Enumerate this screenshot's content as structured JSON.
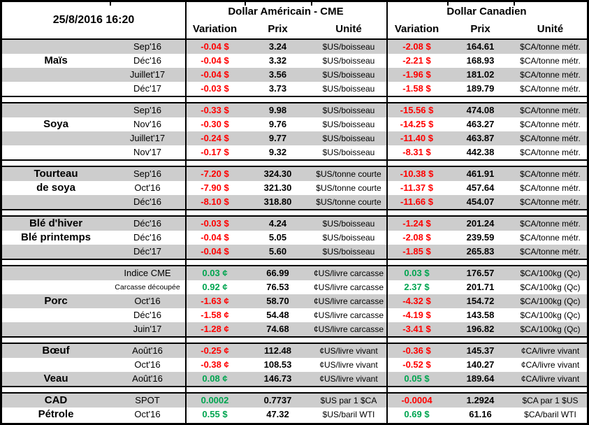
{
  "header": {
    "datetime": "25/8/2016 16:20",
    "us_title": "Dollar Américain - CME",
    "ca_title": "Dollar Canadien",
    "col_variation": "Variation",
    "col_prix": "Prix",
    "col_unite": "Unité"
  },
  "colors": {
    "negative": "#FF0000",
    "positive": "#00A550",
    "stripe": "#CDCDCD"
  },
  "chart_data": {
    "type": "table",
    "title": "25/8/2016 16:20",
    "column_groups": [
      "Dollar Américain - CME",
      "Dollar Canadien"
    ],
    "columns": [
      "Variation",
      "Prix",
      "Unité",
      "Variation",
      "Prix",
      "Unité"
    ],
    "groups": [
      {
        "commodity": "Maïs",
        "rows": [
          {
            "month": "Sep'16",
            "us_var": "-0.04 $",
            "us_prix": "3.24",
            "us_unit": "$US/boisseau",
            "ca_var": "-2.08 $",
            "ca_prix": "164.61",
            "ca_unit": "$CA/tonne métr."
          },
          {
            "name": "Maïs",
            "month": "Déc'16",
            "us_var": "-0.04 $",
            "us_prix": "3.32",
            "us_unit": "$US/boisseau",
            "ca_var": "-2.21 $",
            "ca_prix": "168.93",
            "ca_unit": "$CA/tonne métr."
          },
          {
            "month": "Juillet'17",
            "us_var": "-0.04 $",
            "us_prix": "3.56",
            "us_unit": "$US/boisseau",
            "ca_var": "-1.96 $",
            "ca_prix": "181.02",
            "ca_unit": "$CA/tonne métr."
          },
          {
            "month": "Déc'17",
            "us_var": "-0.03 $",
            "us_prix": "3.73",
            "us_unit": "$US/boisseau",
            "ca_var": "-1.58 $",
            "ca_prix": "189.79",
            "ca_unit": "$CA/tonne métr."
          }
        ]
      },
      {
        "commodity": "Soya",
        "rows": [
          {
            "month": "Sep'16",
            "us_var": "-0.33 $",
            "us_prix": "9.98",
            "us_unit": "$US/boisseau",
            "ca_var": "-15.56 $",
            "ca_prix": "474.08",
            "ca_unit": "$CA/tonne métr."
          },
          {
            "name": "Soya",
            "month": "Nov'16",
            "us_var": "-0.30 $",
            "us_prix": "9.76",
            "us_unit": "$US/boisseau",
            "ca_var": "-14.25 $",
            "ca_prix": "463.27",
            "ca_unit": "$CA/tonne métr."
          },
          {
            "month": "Juillet'17",
            "us_var": "-0.24 $",
            "us_prix": "9.77",
            "us_unit": "$US/boisseau",
            "ca_var": "-11.40 $",
            "ca_prix": "463.87",
            "ca_unit": "$CA/tonne métr."
          },
          {
            "month": "Nov'17",
            "us_var": "-0.17 $",
            "us_prix": "9.32",
            "us_unit": "$US/boisseau",
            "ca_var": "-8.31 $",
            "ca_prix": "442.38",
            "ca_unit": "$CA/tonne métr."
          }
        ]
      },
      {
        "commodity": "Tourteau de soya",
        "rows": [
          {
            "name": "Tourteau",
            "month": "Sep'16",
            "us_var": "-7.20 $",
            "us_prix": "324.30",
            "us_unit": "$US/tonne courte",
            "ca_var": "-10.38 $",
            "ca_prix": "461.91",
            "ca_unit": "$CA/tonne métr."
          },
          {
            "name": "de soya",
            "month": "Oct'16",
            "us_var": "-7.90 $",
            "us_prix": "321.30",
            "us_unit": "$US/tonne courte",
            "ca_var": "-11.37 $",
            "ca_prix": "457.64",
            "ca_unit": "$CA/tonne métr."
          },
          {
            "month": "Déc'16",
            "us_var": "-8.10 $",
            "us_prix": "318.80",
            "us_unit": "$US/tonne courte",
            "ca_var": "-11.66 $",
            "ca_prix": "454.07",
            "ca_unit": "$CA/tonne métr."
          }
        ]
      },
      {
        "commodity": "Blé d'hiver / Blé printemps",
        "rows": [
          {
            "name": "Blé d'hiver",
            "month": "Déc'16",
            "us_var": "-0.03 $",
            "us_prix": "4.24",
            "us_unit": "$US/boisseau",
            "ca_var": "-1.24 $",
            "ca_prix": "201.24",
            "ca_unit": "$CA/tonne métr."
          },
          {
            "name": "Blé printemps",
            "month": "Déc'16",
            "us_var": "-0.04 $",
            "us_prix": "5.05",
            "us_unit": "$US/boisseau",
            "ca_var": "-2.08 $",
            "ca_prix": "239.59",
            "ca_unit": "$CA/tonne métr."
          },
          {
            "month": "Déc'17",
            "us_var": "-0.04 $",
            "us_prix": "5.60",
            "us_unit": "$US/boisseau",
            "ca_var": "-1.85 $",
            "ca_prix": "265.83",
            "ca_unit": "$CA/tonne métr."
          }
        ]
      },
      {
        "commodity": "Porc",
        "rows": [
          {
            "month": "Indice CME",
            "us_var": "0.03 ¢",
            "us_prix": "66.99",
            "us_unit": "¢US/livre carcasse",
            "ca_var": "0.03 $",
            "ca_prix": "176.57",
            "ca_unit": "$CA/100kg (Qc)"
          },
          {
            "month": "Carcasse découpée",
            "us_var": "0.92 ¢",
            "us_prix": "76.53",
            "us_unit": "¢US/livre carcasse",
            "ca_var": "2.37 $",
            "ca_prix": "201.71",
            "ca_unit": "$CA/100kg (Qc)"
          },
          {
            "name": "Porc",
            "month": "Oct'16",
            "us_var": "-1.63 ¢",
            "us_prix": "58.70",
            "us_unit": "¢US/livre carcasse",
            "ca_var": "-4.32 $",
            "ca_prix": "154.72",
            "ca_unit": "$CA/100kg (Qc)"
          },
          {
            "month": "Déc'16",
            "us_var": "-1.58 ¢",
            "us_prix": "54.48",
            "us_unit": "¢US/livre carcasse",
            "ca_var": "-4.19 $",
            "ca_prix": "143.58",
            "ca_unit": "$CA/100kg (Qc)"
          },
          {
            "month": "Juin'17",
            "us_var": "-1.28 ¢",
            "us_prix": "74.68",
            "us_unit": "¢US/livre carcasse",
            "ca_var": "-3.41 $",
            "ca_prix": "196.82",
            "ca_unit": "$CA/100kg (Qc)"
          }
        ]
      },
      {
        "commodity": "Bœuf / Veau",
        "rows": [
          {
            "name": "Bœuf",
            "month": "Août'16",
            "us_var": "-0.25 ¢",
            "us_prix": "112.48",
            "us_unit": "¢US/livre vivant",
            "ca_var": "-0.36 $",
            "ca_prix": "145.37",
            "ca_unit": "¢CA/livre vivant"
          },
          {
            "month": "Oct'16",
            "us_var": "-0.38 ¢",
            "us_prix": "108.53",
            "us_unit": "¢US/livre vivant",
            "ca_var": "-0.52 $",
            "ca_prix": "140.27",
            "ca_unit": "¢CA/livre vivant"
          },
          {
            "name": "Veau",
            "month": "Août'16",
            "us_var": "0.08 ¢",
            "us_prix": "146.73",
            "us_unit": "¢US/livre vivant",
            "ca_var": "0.05 $",
            "ca_prix": "189.64",
            "ca_unit": "¢CA/livre vivant"
          }
        ]
      },
      {
        "commodity": "CAD / Pétrole",
        "rows": [
          {
            "name": "CAD",
            "month": "SPOT",
            "us_var": "0.0002",
            "us_prix": "0.7737",
            "us_unit": "$US par 1 $CA",
            "ca_var": "-0.0004",
            "ca_prix": "1.2924",
            "ca_unit": "$CA par 1 $US"
          },
          {
            "name": "Pétrole",
            "month": "Oct'16",
            "us_var": "0.55 $",
            "us_prix": "47.32",
            "us_unit": "$US/baril WTI",
            "ca_var": "0.69 $",
            "ca_prix": "61.16",
            "ca_unit": "$CA/baril WTI"
          }
        ]
      }
    ]
  }
}
